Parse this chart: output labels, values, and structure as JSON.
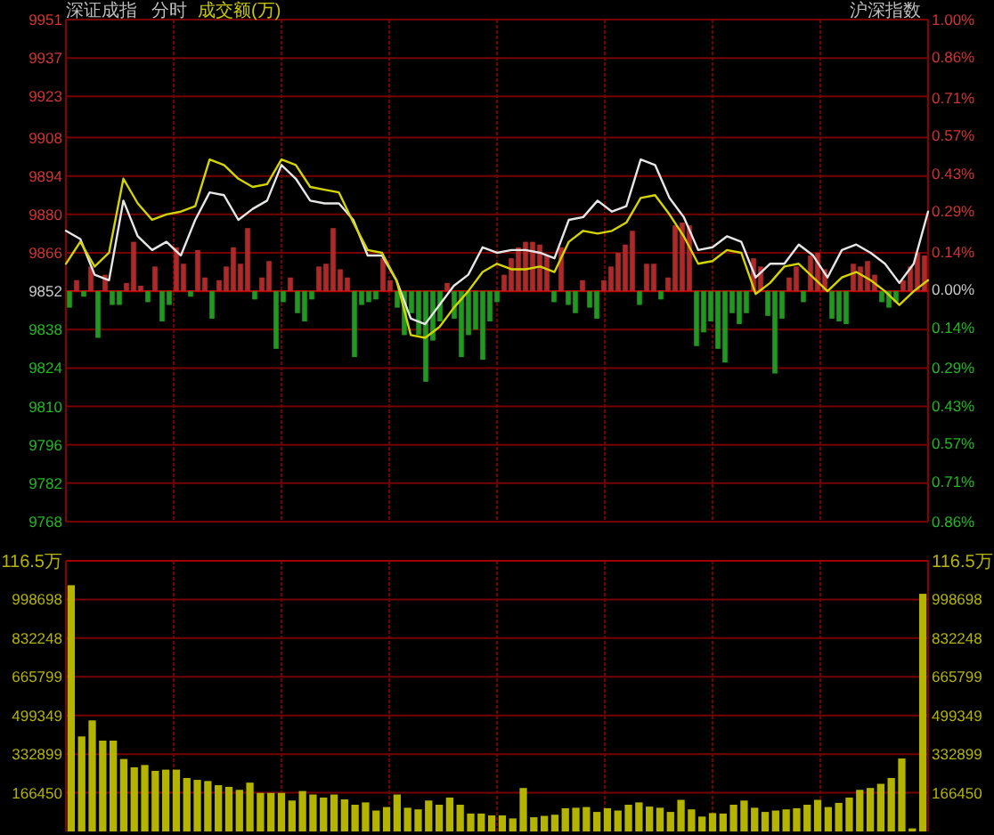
{
  "chart_data": [
    {
      "type": "bar",
      "ylim": [
        9768,
        9951
      ],
      "tick_labels": false,
      "categories": [
        null,
        null,
        null,
        null,
        null,
        null,
        null,
        null,
        null,
        null,
        null,
        null,
        null,
        null,
        null,
        null,
        null,
        null,
        null,
        null,
        null,
        null,
        null,
        null,
        null,
        null,
        null,
        null,
        null,
        null,
        null,
        null,
        null,
        null,
        null,
        null,
        null,
        null,
        null,
        null,
        null,
        null,
        null,
        null,
        null,
        null,
        null,
        null,
        null,
        null,
        null,
        null,
        null,
        null,
        null,
        null,
        null,
        null,
        null,
        null,
        null,
        null,
        null,
        null,
        null,
        null,
        null,
        null,
        null,
        null,
        null,
        null,
        null,
        null,
        null,
        null,
        null,
        null,
        null,
        null,
        null,
        null,
        null,
        null,
        null,
        null,
        null,
        null,
        null,
        null,
        null,
        null,
        null,
        null,
        null,
        null,
        null,
        null,
        null,
        null,
        null,
        null,
        null,
        null,
        null,
        null,
        null,
        null,
        null,
        null,
        null,
        null,
        null,
        null,
        null,
        null,
        null,
        null,
        null,
        null,
        null
      ],
      "values": [
        -6,
        4,
        -2,
        9,
        -17,
        6,
        -5,
        -5,
        3,
        18,
        2,
        -4,
        9,
        -11,
        -5,
        16,
        10,
        -2,
        15,
        5,
        -10,
        4,
        9,
        16,
        10,
        23,
        -3,
        5,
        11,
        -21,
        -4,
        5,
        -8,
        -11,
        -3,
        9,
        10,
        23,
        8,
        5,
        -24,
        -5,
        -4,
        -3,
        12,
        4,
        -6,
        -16,
        -8,
        -16,
        -33,
        -18,
        -11,
        3,
        -10,
        -24,
        -16,
        -14,
        -25,
        -11,
        -4,
        6,
        12,
        16,
        18,
        18,
        17,
        13,
        -4,
        16,
        -5,
        -8,
        4,
        -6,
        -10,
        4,
        9,
        14,
        17,
        22,
        -5,
        10,
        10,
        -3,
        5,
        24,
        25,
        24,
        -20,
        -15,
        -11,
        -21,
        -26,
        -8,
        -12,
        -8,
        12,
        9,
        -9,
        -30,
        -10,
        5,
        9,
        -4,
        13,
        14,
        8,
        -10,
        -11,
        -12,
        10,
        9,
        11,
        6,
        -4,
        -6,
        -4,
        4,
        9,
        14,
        13
      ],
      "base": [
        9852,
        9852,
        9852,
        9852,
        9852,
        9852,
        9852,
        9852,
        9852,
        9852,
        9852,
        9852,
        9852,
        9852,
        9852,
        9852,
        9852,
        9852,
        9852,
        9852,
        9852,
        9852,
        9852,
        9852,
        9852,
        9852,
        9852,
        9852,
        9852,
        9852,
        9852,
        9852,
        9852,
        9852,
        9852,
        9852,
        9852,
        9852,
        9852,
        9852,
        9852,
        9852,
        9852,
        9852,
        9852,
        9852,
        9852,
        9852,
        9852,
        9852,
        9852,
        9852,
        9852,
        9852,
        9852,
        9852,
        9852,
        9852,
        9852,
        9852,
        9852,
        9852,
        9852,
        9852,
        9852,
        9852,
        9852,
        9852,
        9852,
        9852,
        9852,
        9852,
        9852,
        9852,
        9852,
        9852,
        9852,
        9852,
        9852,
        9852,
        9852,
        9852,
        9852,
        9852,
        9852,
        9852,
        9852,
        9852,
        9852,
        9852,
        9852,
        9852,
        9852,
        9852,
        9852,
        9852,
        9852,
        9852,
        9852,
        9852,
        9852,
        9852,
        9852,
        9852,
        9852,
        9852,
        9852,
        9852,
        9852,
        9852,
        9852,
        9852,
        9852,
        9852,
        9852,
        9852,
        9852,
        9852,
        9852,
        9852,
        9852
      ],
      "colors": [
        "#1f9a1f",
        "#b02828",
        "#1f9a1f",
        "#b02828",
        "#1f9a1f",
        "#b02828",
        "#1f9a1f",
        "#1f9a1f",
        "#b02828",
        "#b02828",
        "#b02828",
        "#1f9a1f",
        "#b02828",
        "#1f9a1f",
        "#1f9a1f",
        "#b02828",
        "#b02828",
        "#1f9a1f",
        "#b02828",
        "#b02828",
        "#1f9a1f",
        "#b02828",
        "#b02828",
        "#b02828",
        "#b02828",
        "#b02828",
        "#1f9a1f",
        "#b02828",
        "#b02828",
        "#1f9a1f",
        "#1f9a1f",
        "#b02828",
        "#1f9a1f",
        "#1f9a1f",
        "#1f9a1f",
        "#b02828",
        "#b02828",
        "#b02828",
        "#b02828",
        "#b02828",
        "#1f9a1f",
        "#1f9a1f",
        "#1f9a1f",
        "#1f9a1f",
        "#b02828",
        "#b02828",
        "#1f9a1f",
        "#1f9a1f",
        "#1f9a1f",
        "#1f9a1f",
        "#1f9a1f",
        "#1f9a1f",
        "#1f9a1f",
        "#b02828",
        "#1f9a1f",
        "#1f9a1f",
        "#1f9a1f",
        "#1f9a1f",
        "#1f9a1f",
        "#1f9a1f",
        "#1f9a1f",
        "#b02828",
        "#b02828",
        "#b02828",
        "#b02828",
        "#b02828",
        "#b02828",
        "#b02828",
        "#1f9a1f",
        "#b02828",
        "#1f9a1f",
        "#1f9a1f",
        "#b02828",
        "#1f9a1f",
        "#1f9a1f",
        "#b02828",
        "#b02828",
        "#b02828",
        "#b02828",
        "#b02828",
        "#1f9a1f",
        "#b02828",
        "#b02828",
        "#1f9a1f",
        "#b02828",
        "#b02828",
        "#b02828",
        "#b02828",
        "#1f9a1f",
        "#1f9a1f",
        "#1f9a1f",
        "#1f9a1f",
        "#1f9a1f",
        "#1f9a1f",
        "#1f9a1f",
        "#1f9a1f",
        "#b02828",
        "#b02828",
        "#1f9a1f",
        "#1f9a1f",
        "#1f9a1f",
        "#b02828",
        "#b02828",
        "#1f9a1f",
        "#b02828",
        "#b02828",
        "#b02828",
        "#1f9a1f",
        "#1f9a1f",
        "#1f9a1f",
        "#b02828",
        "#b02828",
        "#b02828",
        "#b02828",
        "#1f9a1f",
        "#1f9a1f",
        "#1f9a1f",
        "#b02828",
        "#b02828",
        "#b02828",
        "#b02828"
      ]
    },
    {
      "type": "line",
      "title": "深证成指",
      "subtitle": "分时",
      "annotations": [
        "成交额(万)",
        "沪深指数"
      ],
      "categories": [
        null,
        null,
        null,
        null,
        null,
        null,
        null,
        null,
        null,
        null,
        null,
        null,
        null,
        null,
        null,
        null,
        null,
        null,
        null,
        null,
        null,
        null,
        null,
        null,
        null,
        null,
        null,
        null,
        null,
        null,
        null,
        null,
        null,
        null,
        null,
        null,
        null,
        null,
        null,
        null,
        null,
        null,
        null,
        null,
        null,
        null,
        null,
        null,
        null,
        null,
        null,
        null,
        null,
        null,
        null,
        null,
        null,
        null,
        null,
        null,
        null
      ],
      "ylim": [
        9768,
        9951
      ],
      "yticks": [
        9951,
        9937,
        9923,
        9908,
        9894,
        9880,
        9866,
        9852,
        9838,
        9824,
        9810,
        9796,
        9782,
        9768
      ],
      "y2lim": [
        -0.86,
        1.0
      ],
      "y2ticks": [
        {
          "value": 1.0,
          "label": "1.00%"
        },
        {
          "value": 0.86,
          "label": "0.86%"
        },
        {
          "value": 0.71,
          "label": "0.71%"
        },
        {
          "value": 0.57,
          "label": "0.57%"
        },
        {
          "value": 0.43,
          "label": "0.43%"
        },
        {
          "value": 0.29,
          "label": "0.29%"
        },
        {
          "value": 0.14,
          "label": "0.14%"
        },
        {
          "value": 0,
          "label": "0.00%"
        },
        {
          "value": -0.14,
          "label": "0.14%"
        },
        {
          "value": -0.29,
          "label": "0.29%"
        },
        {
          "value": -0.43,
          "label": "0.43%"
        },
        {
          "value": -0.57,
          "label": "0.57%"
        },
        {
          "value": -0.71,
          "label": "0.71%"
        },
        {
          "value": -0.86,
          "label": "0.86%"
        }
      ],
      "grid": true,
      "tick_labels": "y",
      "ref_lines": [
        {
          "axis": "y",
          "value": 9852,
          "color": "#c00000"
        }
      ],
      "series": [
        {
          "color": "#e6e6e6",
          "values": [
            9874,
            9871,
            9858,
            9856,
            9885,
            9872,
            9867,
            9870,
            9865,
            9878,
            9888,
            9887,
            9878,
            9882,
            9885,
            9898,
            9893,
            9885,
            9884,
            9884,
            9878,
            9865,
            9865,
            9856,
            9842,
            9840,
            9847,
            9854,
            9858,
            9868,
            9866,
            9867,
            9867,
            9866,
            9864,
            9878,
            9879,
            9885,
            9881,
            9883,
            9900,
            9898,
            9886,
            9879,
            9867,
            9868,
            9872,
            9870,
            9857,
            9862,
            9862,
            9869,
            9865,
            9857,
            9867,
            9869,
            9866,
            9862,
            9855,
            9862,
            9881
          ]
        },
        {
          "color": "#d4d400",
          "values": [
            9862,
            9870,
            9861,
            9866,
            9893,
            9884,
            9878,
            9880,
            9881,
            9883,
            9900,
            9898,
            9893,
            9890,
            9891,
            9900,
            9898,
            9890,
            9889,
            9888,
            9877,
            9867,
            9866,
            9856,
            9836,
            9835,
            9839,
            9846,
            9852,
            9859,
            9862,
            9860,
            9860,
            9861,
            9859,
            9870,
            9874,
            9873,
            9874,
            9877,
            9886,
            9887,
            9880,
            9872,
            9862,
            9863,
            9867,
            9866,
            9851,
            9855,
            9861,
            9862,
            9857,
            9852,
            9857,
            9859,
            9856,
            9852,
            9847,
            9852,
            9856
          ]
        }
      ]
    },
    {
      "type": "bar",
      "color": "#b4b400",
      "annotations": [
        "116.5万",
        "116.5万"
      ],
      "ylim": [
        0,
        1165000
      ],
      "yticks": [
        998698,
        832248,
        665799,
        499349,
        332899,
        166450
      ],
      "y2lim": [
        0,
        1165000
      ],
      "y2ticks": [
        998698,
        832248,
        665799,
        499349,
        332899,
        166450
      ],
      "grid": true,
      "tick_labels": "y",
      "categories": [
        null,
        null,
        null,
        null,
        null,
        null,
        null,
        null,
        null,
        null,
        null,
        null,
        null,
        null,
        null,
        null,
        null,
        null,
        null,
        null,
        null,
        null,
        null,
        null,
        null,
        null,
        null,
        null,
        null,
        null,
        null,
        null,
        null,
        null,
        null,
        null,
        null,
        null,
        null,
        null,
        null,
        null,
        null,
        null,
        null,
        null,
        null,
        null,
        null,
        null,
        null,
        null,
        null,
        null,
        null,
        null,
        null,
        null,
        null,
        null,
        null,
        null,
        null,
        null,
        null,
        null,
        null,
        null,
        null,
        null,
        null,
        null,
        null,
        null,
        null,
        null,
        null,
        null,
        null,
        null,
        null,
        null
      ],
      "values": [
        1060000,
        409000,
        478000,
        391000,
        391000,
        312000,
        276000,
        286000,
        261000,
        266000,
        266000,
        230000,
        222000,
        217000,
        199000,
        192000,
        179000,
        210000,
        166000,
        166000,
        166000,
        133000,
        174000,
        159000,
        146000,
        159000,
        138000,
        115000,
        125000,
        90000,
        105000,
        159000,
        102000,
        95000,
        133000,
        115000,
        146000,
        115000,
        77000,
        77000,
        69000,
        69000,
        56000,
        187000,
        61000,
        67000,
        72000,
        100000,
        102000,
        105000,
        84000,
        100000,
        90000,
        115000,
        125000,
        107000,
        102000,
        84000,
        136000,
        95000,
        64000,
        79000,
        77000,
        115000,
        133000,
        102000,
        84000,
        90000,
        95000,
        100000,
        115000,
        136000,
        105000,
        123000,
        146000,
        179000,
        187000,
        205000,
        230000,
        314000,
        13000,
        1023000
      ]
    }
  ]
}
